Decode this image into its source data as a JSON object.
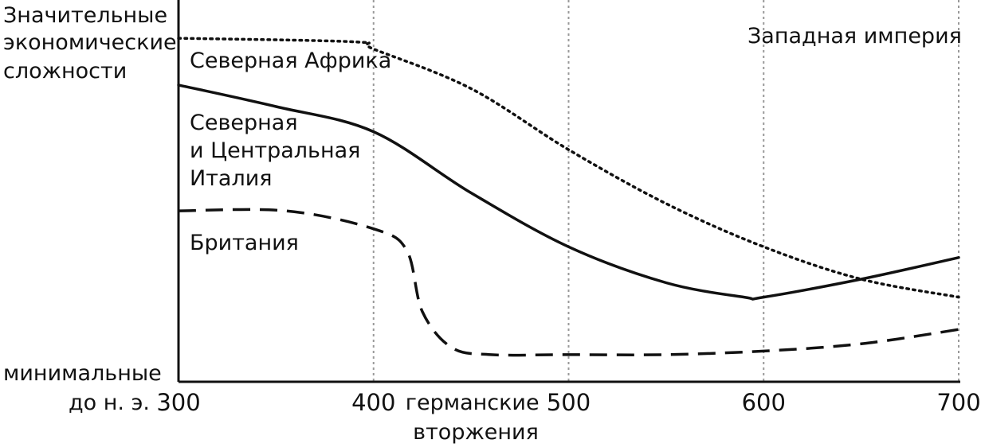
{
  "chart_data": {
    "type": "line",
    "title": "",
    "ylabel_top": [
      "Значительные",
      "экономические",
      "сложности"
    ],
    "ylabel_bottom": "минимальные",
    "x_prefix": "до н. э.",
    "x_ticks": [
      "300",
      "400",
      "500",
      "600",
      "700"
    ],
    "x_annotation": [
      "германские",
      "вторжения"
    ],
    "xlim": [
      300,
      700
    ],
    "ylim": [
      0,
      100
    ],
    "grid": "vertical dotted at 400, 500, 600, 700",
    "colors": {
      "line": "#111111",
      "grid": "#999999"
    },
    "series": [
      {
        "name": "Западная империя",
        "style": "dotted",
        "points": [
          [
            300,
            94
          ],
          [
            390,
            93
          ],
          [
            400,
            91
          ],
          [
            450,
            80
          ],
          [
            500,
            63
          ],
          [
            550,
            48
          ],
          [
            600,
            36
          ],
          [
            650,
            27
          ],
          [
            700,
            22
          ]
        ]
      },
      {
        "name": "Северная Африка",
        "style": "solid",
        "points": [
          [
            300,
            81
          ],
          [
            350,
            75
          ],
          [
            400,
            68
          ],
          [
            450,
            51
          ],
          [
            500,
            36
          ],
          [
            550,
            26
          ],
          [
            590,
            22
          ],
          [
            600,
            22
          ],
          [
            650,
            27
          ],
          [
            700,
            33
          ]
        ]
      },
      {
        "name": "Британия",
        "style": "dashed",
        "points": [
          [
            300,
            46
          ],
          [
            355,
            46
          ],
          [
            400,
            41
          ],
          [
            417,
            35
          ],
          [
            425,
            18
          ],
          [
            440,
            8
          ],
          [
            460,
            6
          ],
          [
            500,
            6
          ],
          [
            550,
            6
          ],
          [
            600,
            7
          ],
          [
            650,
            9
          ],
          [
            700,
            13
          ]
        ]
      }
    ],
    "labels": [
      {
        "series": "Западная империя",
        "lines": [
          "Западная империя"
        ]
      },
      {
        "series": "Северная Африка",
        "lines": [
          "Северная Африка"
        ]
      },
      {
        "series": "",
        "lines": [
          "Северная",
          "и Центральная",
          "Италия"
        ]
      },
      {
        "series": "Британия",
        "lines": [
          "Британия"
        ]
      }
    ]
  }
}
